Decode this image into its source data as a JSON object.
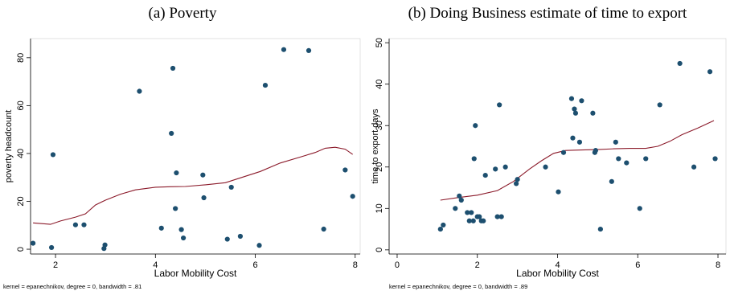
{
  "panels": [
    {
      "title": "(a) Poverty"
    },
    {
      "title": "(b) Doing Business estimate of time to export"
    }
  ],
  "colors": {
    "points": "#1d4f6f",
    "smooth": "#8b1a2a",
    "axis": "#000000"
  },
  "chart_data": [
    {
      "type": "scatter",
      "title": "(a) Poverty",
      "xlabel": "Labor Mobility Cost",
      "ylabel": "poverty headcount",
      "xlim": [
        1.5,
        8.1
      ],
      "ylim": [
        -2,
        88
      ],
      "xticks": [
        2,
        4,
        6,
        8
      ],
      "yticks": [
        0,
        20,
        40,
        60,
        80
      ],
      "grid": false,
      "note": "kernel = epanechnikov, degree = 0, bandwidth = .81",
      "points": [
        [
          1.55,
          2.5
        ],
        [
          1.92,
          0.7
        ],
        [
          1.95,
          39.5
        ],
        [
          2.4,
          10.2
        ],
        [
          2.57,
          10.2
        ],
        [
          2.97,
          0.3
        ],
        [
          2.99,
          1.8
        ],
        [
          3.68,
          66
        ],
        [
          4.12,
          8.8
        ],
        [
          4.32,
          48.4
        ],
        [
          4.35,
          75.6
        ],
        [
          4.4,
          17
        ],
        [
          4.42,
          31.9
        ],
        [
          4.52,
          8.2
        ],
        [
          4.56,
          4.7
        ],
        [
          4.95,
          31
        ],
        [
          4.97,
          21.5
        ],
        [
          5.44,
          4.2
        ],
        [
          5.52,
          25.9
        ],
        [
          5.7,
          5.4
        ],
        [
          6.08,
          1.6
        ],
        [
          6.2,
          68.5
        ],
        [
          6.57,
          83.4
        ],
        [
          7.07,
          83
        ],
        [
          7.37,
          8.4
        ],
        [
          7.8,
          33.1
        ],
        [
          7.95,
          22.1
        ]
      ],
      "smooth": [
        [
          1.55,
          11
        ],
        [
          1.9,
          10.4
        ],
        [
          2.1,
          11.8
        ],
        [
          2.4,
          13.4
        ],
        [
          2.6,
          14.8
        ],
        [
          2.8,
          18.5
        ],
        [
          3.0,
          20.5
        ],
        [
          3.3,
          23
        ],
        [
          3.6,
          24.8
        ],
        [
          4.0,
          25.9
        ],
        [
          4.3,
          26.1
        ],
        [
          4.6,
          26.2
        ],
        [
          5.0,
          26.9
        ],
        [
          5.4,
          27.8
        ],
        [
          5.7,
          29.8
        ],
        [
          6.1,
          32.5
        ],
        [
          6.5,
          36
        ],
        [
          6.9,
          38.5
        ],
        [
          7.2,
          40.4
        ],
        [
          7.4,
          42.2
        ],
        [
          7.6,
          42.6
        ],
        [
          7.8,
          41.8
        ],
        [
          7.95,
          39.6
        ]
      ]
    },
    {
      "type": "scatter",
      "title": "(b) Doing Business estimate of time to export",
      "xlabel": "Labor Mobility Cost",
      "ylabel": "time to export days",
      "xlim": [
        -0.2,
        8.2
      ],
      "ylim": [
        -1,
        51
      ],
      "xticks": [
        0,
        2,
        4,
        6,
        8
      ],
      "yticks": [
        0,
        10,
        20,
        30,
        40,
        50
      ],
      "grid": false,
      "note": "kernel = epanechnikov, degree = 0, bandwidth = .89",
      "points": [
        [
          1.08,
          5
        ],
        [
          1.15,
          6
        ],
        [
          1.45,
          10
        ],
        [
          1.55,
          13
        ],
        [
          1.6,
          12
        ],
        [
          1.75,
          9
        ],
        [
          1.8,
          7
        ],
        [
          1.85,
          9
        ],
        [
          1.9,
          7
        ],
        [
          1.92,
          22
        ],
        [
          1.95,
          30
        ],
        [
          2.0,
          8
        ],
        [
          2.05,
          8
        ],
        [
          2.1,
          7
        ],
        [
          2.15,
          7
        ],
        [
          2.2,
          18
        ],
        [
          2.45,
          19.5
        ],
        [
          2.5,
          8
        ],
        [
          2.55,
          35
        ],
        [
          2.6,
          8
        ],
        [
          2.7,
          20
        ],
        [
          2.97,
          16
        ],
        [
          3.0,
          17
        ],
        [
          3.7,
          20
        ],
        [
          4.02,
          14
        ],
        [
          4.15,
          23.5
        ],
        [
          4.35,
          36.5
        ],
        [
          4.38,
          27
        ],
        [
          4.42,
          34
        ],
        [
          4.45,
          33
        ],
        [
          4.55,
          26
        ],
        [
          4.6,
          36
        ],
        [
          4.88,
          33
        ],
        [
          4.93,
          23.5
        ],
        [
          4.95,
          24
        ],
        [
          5.07,
          5
        ],
        [
          5.35,
          16.5
        ],
        [
          5.45,
          26
        ],
        [
          5.52,
          22
        ],
        [
          5.72,
          21
        ],
        [
          6.05,
          10
        ],
        [
          6.2,
          22
        ],
        [
          6.55,
          35
        ],
        [
          7.05,
          45
        ],
        [
          7.4,
          20
        ],
        [
          7.8,
          43
        ],
        [
          7.93,
          22
        ]
      ],
      "smooth": [
        [
          1.08,
          12
        ],
        [
          1.5,
          12.6
        ],
        [
          2.0,
          13.2
        ],
        [
          2.5,
          14.3
        ],
        [
          2.9,
          16.5
        ],
        [
          3.3,
          19.5
        ],
        [
          3.6,
          21.5
        ],
        [
          3.9,
          23.3
        ],
        [
          4.2,
          24
        ],
        [
          4.6,
          24.1
        ],
        [
          5.0,
          24.2
        ],
        [
          5.4,
          24.4
        ],
        [
          5.8,
          24.5
        ],
        [
          6.2,
          24.5
        ],
        [
          6.5,
          25
        ],
        [
          6.8,
          26.2
        ],
        [
          7.1,
          27.8
        ],
        [
          7.5,
          29.4
        ],
        [
          7.9,
          31.2
        ]
      ]
    }
  ]
}
